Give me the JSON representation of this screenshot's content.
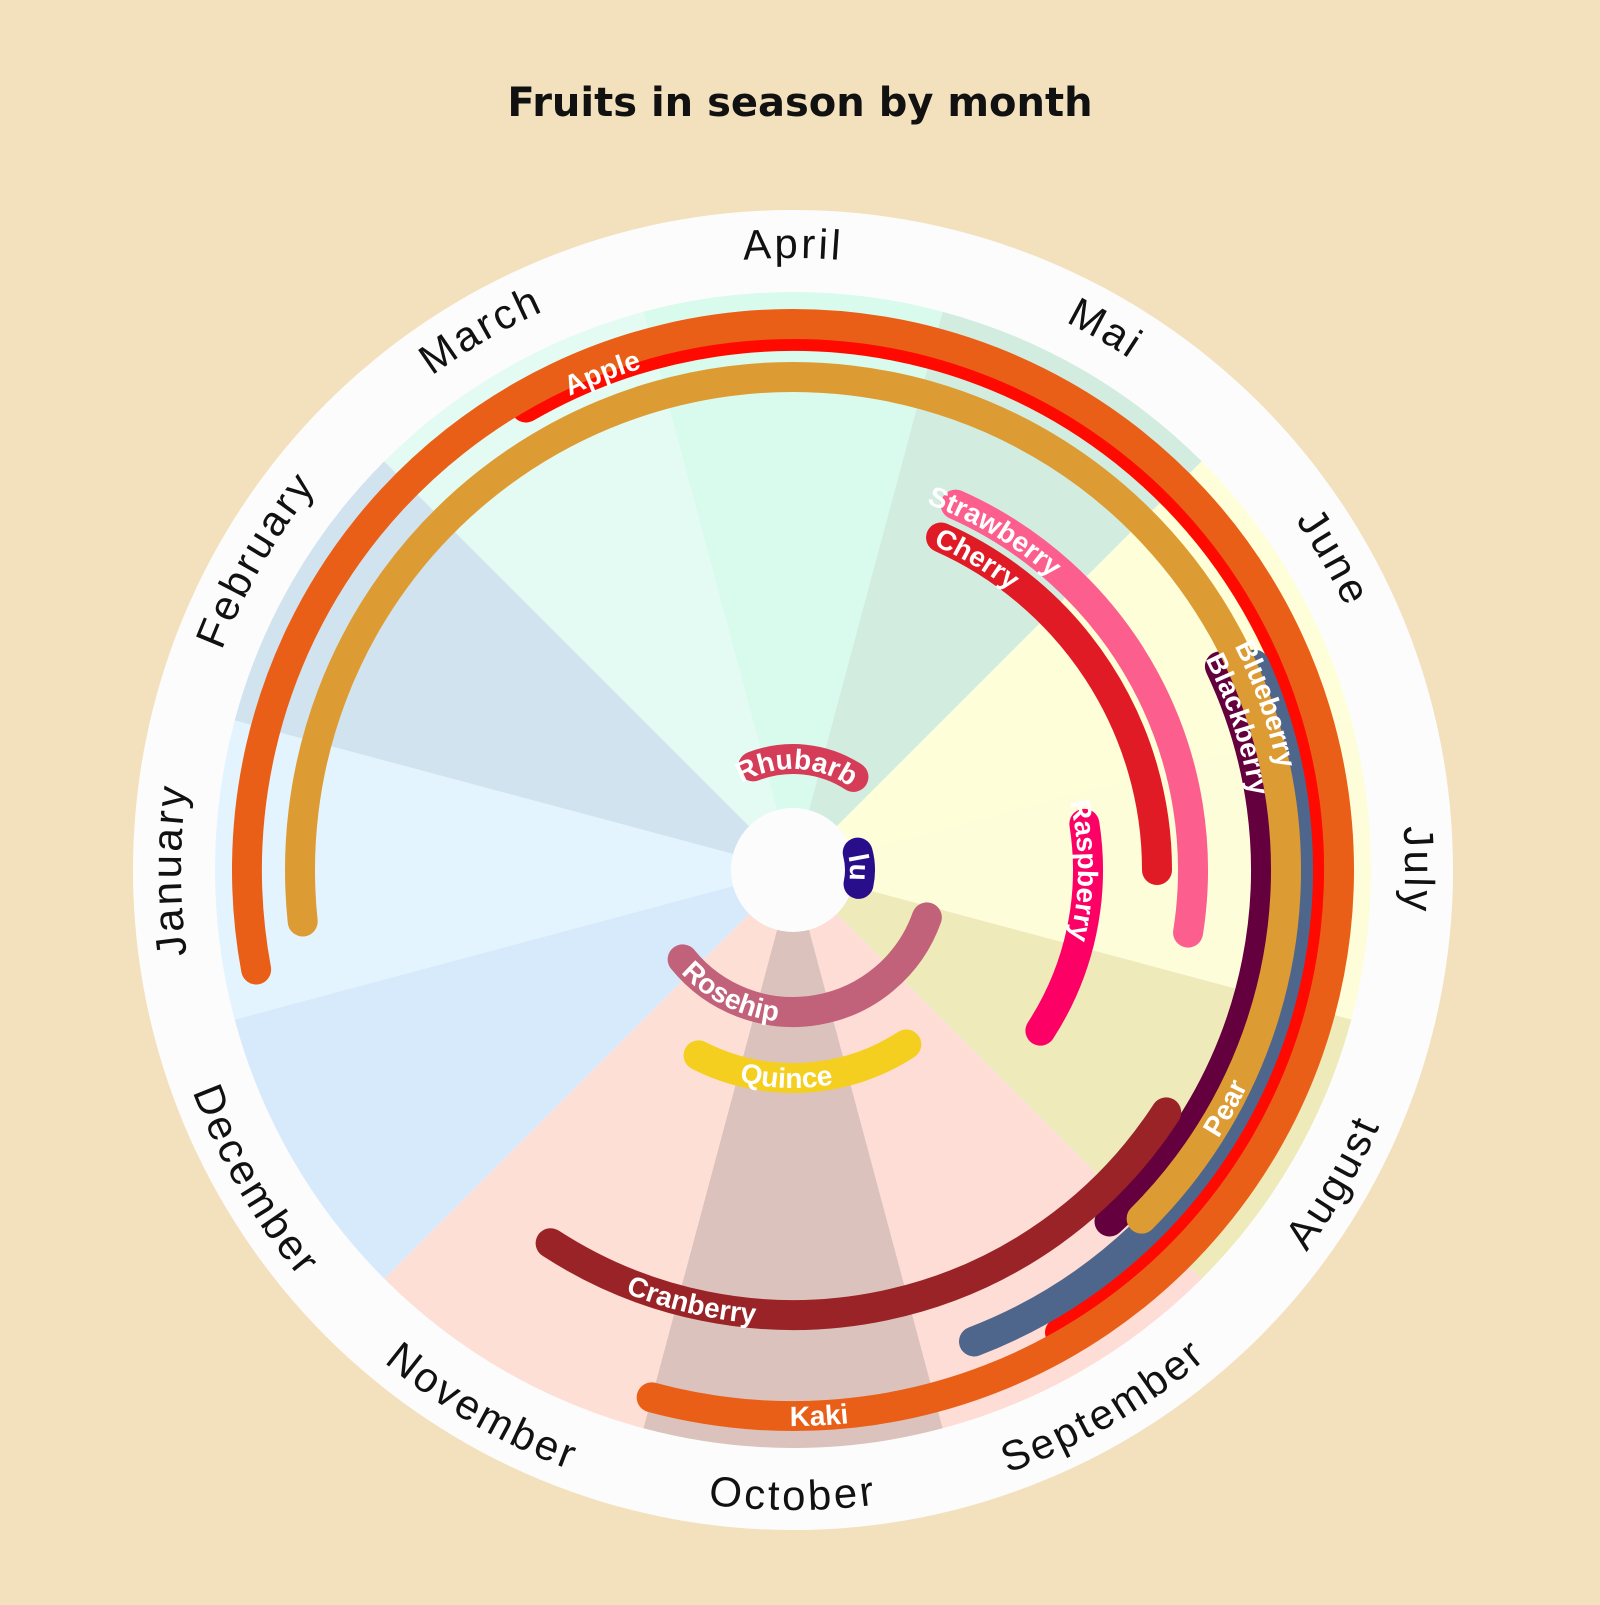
{
  "chart_data": {
    "type": "radial-calendar",
    "title": "Fruits in season by month",
    "months": [
      "January",
      "February",
      "March",
      "April",
      "Mai",
      "June",
      "July",
      "August",
      "September",
      "October",
      "November",
      "December"
    ],
    "month_colors": [
      "#e4f4fe",
      "#d1e3ef",
      "#e4fbf4",
      "#d9fbee",
      "#d2ede0",
      "#fefed8",
      "#fdfdd9",
      "#eeeaba",
      "#fdddd5",
      "#dcc2bc",
      "#fddfd6",
      "#d6eafc"
    ],
    "fruits": [
      {
        "name": "Apple",
        "start": 2.5,
        "end": 8.5,
        "color": "#ff0a00"
      },
      {
        "name": "Blueberry",
        "start": 5.7,
        "end": 8.8,
        "color": "#4f668c"
      },
      {
        "name": "Blackberry",
        "start": 5.65,
        "end": 8.1,
        "color": "#63003d"
      },
      {
        "name": "Strawberry",
        "start": 4.3,
        "end": 6.8,
        "color": "#fc5e8e"
      },
      {
        "name": "Cherry",
        "start": 4.3,
        "end": 6.5,
        "color": "#e01b26"
      },
      {
        "name": "Raspberry",
        "start": 6.2,
        "end": 7.6,
        "color": "#fc0066"
      },
      {
        "name": "Rhubarb",
        "start": 2.8,
        "end": 4.6,
        "color": "#d43c57"
      },
      {
        "name": "Plum",
        "start": 6.0,
        "end": 6.9,
        "color": "#290e8c"
      },
      {
        "name": "Rosehip",
        "start": 7.15,
        "end": 11.2,
        "color": "#c1627a"
      },
      {
        "name": "Quince",
        "start": 8.4,
        "end": 10.4,
        "color": "#f5cf1f"
      },
      {
        "name": "Cranberry",
        "start": 7.6,
        "end": 10.6,
        "color": "#992326"
      },
      {
        "name": "Pear",
        "start": 0.3,
        "end": 8.0,
        "color": "#dd9c33"
      },
      {
        "name": "Kaki",
        "start": 0.15,
        "end": 10.0,
        "color": "#e95f17"
      }
    ]
  }
}
